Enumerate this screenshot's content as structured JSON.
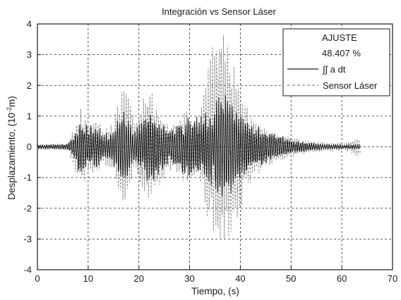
{
  "chart_data": {
    "type": "line",
    "title": "Integración vs Sensor Láser",
    "xlabel": "Tiempo, (s)",
    "ylabel_main": "Desplazamiento, (10",
    "ylabel_sup": "-2",
    "ylabel_tail": "m)",
    "xlim": [
      0,
      70
    ],
    "ylim": [
      -4,
      4
    ],
    "xticks": [
      0,
      10,
      20,
      30,
      40,
      50,
      60,
      70
    ],
    "yticks": [
      -4,
      -3,
      -2,
      -1,
      0,
      1,
      2,
      3,
      4
    ],
    "grid": true,
    "legend": {
      "position": "top-right",
      "title": "AJUSTE",
      "subtitle": "48.407 %"
    },
    "colors": {
      "integrated": "#1a1a1a",
      "sensor": "#8a8a8a"
    },
    "series": [
      {
        "name": "∫∫ a dt",
        "style": "solid",
        "envelope": {
          "t": [
            0,
            6,
            7.5,
            8.5,
            10,
            11.5,
            13,
            15,
            16.5,
            17.5,
            19,
            21,
            22.5,
            24,
            26,
            28,
            30,
            32,
            34,
            35.5,
            37,
            39,
            41,
            43,
            46,
            50,
            55,
            60,
            63.5
          ],
          "amp": [
            0.05,
            0.08,
            0.45,
            0.85,
            0.6,
            0.7,
            0.35,
            0.5,
            1.3,
            1.1,
            0.45,
            0.9,
            1.15,
            0.8,
            0.45,
            0.7,
            0.9,
            0.85,
            1.0,
            1.5,
            1.75,
            1.3,
            0.9,
            0.6,
            0.4,
            0.2,
            0.1,
            0.06,
            0.06
          ]
        }
      },
      {
        "name": "Sensor Láser",
        "style": "dashed",
        "envelope": {
          "t": [
            0,
            6,
            7.5,
            8.5,
            10,
            11.5,
            13,
            15,
            16.5,
            17.5,
            19,
            21,
            22.5,
            24,
            26,
            28,
            30,
            32,
            34,
            35.5,
            37,
            39,
            41,
            43,
            46,
            50,
            55,
            60,
            63.5
          ],
          "amp": [
            0.07,
            0.1,
            0.7,
            1.1,
            0.8,
            0.9,
            0.5,
            0.8,
            2.0,
            1.8,
            0.8,
            1.6,
            1.7,
            1.1,
            0.7,
            0.9,
            1.1,
            1.0,
            2.7,
            3.4,
            3.6,
            2.3,
            1.3,
            0.8,
            0.5,
            0.3,
            0.15,
            0.1,
            0.3
          ]
        }
      }
    ]
  }
}
